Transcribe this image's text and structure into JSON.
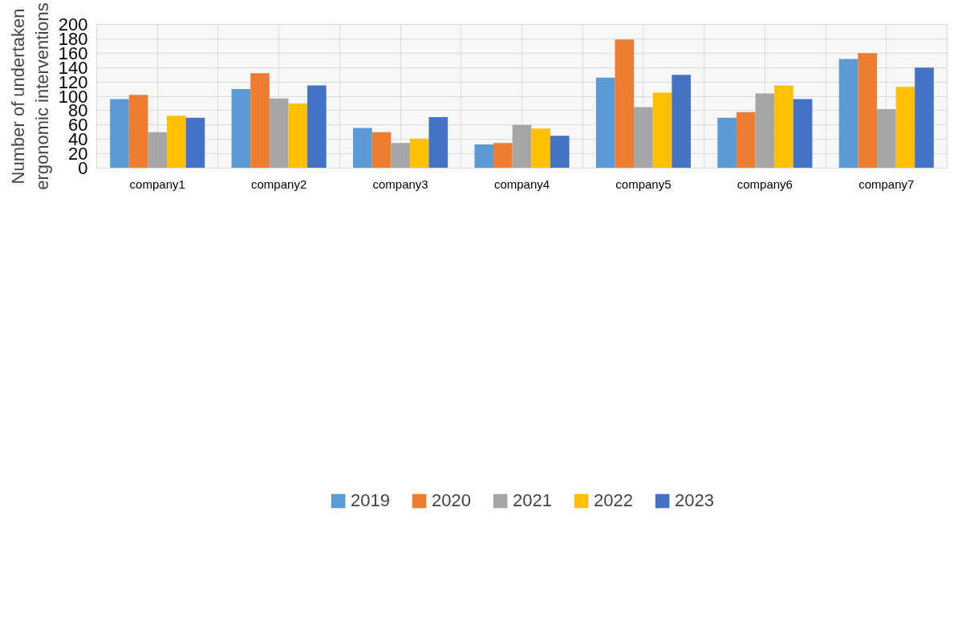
{
  "chart_data": {
    "type": "bar",
    "ylabel": "Number of undertaken ergonomic interventions",
    "categories": [
      "company1",
      "company2",
      "company3",
      "company4",
      "company5",
      "company6",
      "company7"
    ],
    "series": [
      {
        "name": "2019",
        "color": "#5b9bd5",
        "values": [
          96,
          110,
          56,
          33,
          126,
          70,
          152
        ]
      },
      {
        "name": "2020",
        "color": "#ed7d31",
        "values": [
          102,
          132,
          50,
          35,
          179,
          78,
          160
        ]
      },
      {
        "name": "2021",
        "color": "#a5a5a5",
        "values": [
          50,
          97,
          35,
          60,
          85,
          104,
          82
        ]
      },
      {
        "name": "2022",
        "color": "#ffc000",
        "values": [
          73,
          90,
          41,
          55,
          105,
          115,
          113
        ]
      },
      {
        "name": "2023",
        "color": "#4472c4",
        "values": [
          70,
          115,
          71,
          45,
          130,
          96,
          140
        ]
      }
    ],
    "ylim": [
      0,
      200
    ],
    "yticks": [
      0,
      20,
      40,
      60,
      80,
      100,
      120,
      140,
      160,
      180,
      200
    ],
    "grid": true,
    "legend": "bottom"
  }
}
